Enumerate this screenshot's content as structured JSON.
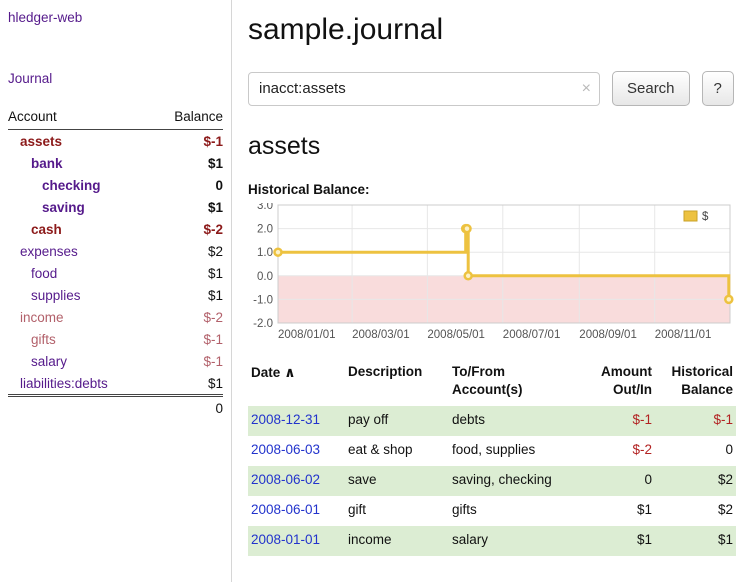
{
  "palette": {
    "link_purple": "#551a8b",
    "date_link_blue": "#2233cc",
    "negative_dark": "#8c1a1a",
    "negative_soft": "#b2606a",
    "negative_red": "#b22222",
    "text": "#111111",
    "row_shade_green": "#dcedd3",
    "chart_line_gold": "#edc240",
    "chart_negative_fill": "#f9dcdc",
    "chart_grid": "#e7e7e7",
    "chart_border": "#cccccc",
    "chart_tick_text": "#545454"
  },
  "sidebar": {
    "app_title": "hledger-web",
    "journal_link": "Journal",
    "accounts_header": {
      "account": "Account",
      "balance": "Balance"
    },
    "accounts": [
      {
        "name": "assets",
        "indent": 0,
        "bold": true,
        "name_color": "negative_dark",
        "balance": "$-1",
        "balance_color": "negative_dark"
      },
      {
        "name": "bank",
        "indent": 1,
        "bold": true,
        "name_color": "link_purple",
        "balance": "$1",
        "balance_color": "text"
      },
      {
        "name": "checking",
        "indent": 2,
        "bold": true,
        "name_color": "link_purple",
        "balance": "0",
        "balance_color": "text"
      },
      {
        "name": "saving",
        "indent": 2,
        "bold": true,
        "name_color": "link_purple",
        "balance": "$1",
        "balance_color": "text"
      },
      {
        "name": "cash",
        "indent": 1,
        "bold": true,
        "name_color": "negative_dark",
        "balance": "$-2",
        "balance_color": "negative_dark"
      },
      {
        "name": "expenses",
        "indent": 0,
        "bold": false,
        "name_color": "link_purple",
        "balance": "$2",
        "balance_color": "text"
      },
      {
        "name": "food",
        "indent": 1,
        "bold": false,
        "name_color": "link_purple",
        "balance": "$1",
        "balance_color": "text"
      },
      {
        "name": "supplies",
        "indent": 1,
        "bold": false,
        "name_color": "link_purple",
        "balance": "$1",
        "balance_color": "text"
      },
      {
        "name": "income",
        "indent": 0,
        "bold": false,
        "name_color": "negative_soft",
        "balance": "$-2",
        "balance_color": "negative_soft"
      },
      {
        "name": "gifts",
        "indent": 1,
        "bold": false,
        "name_color": "negative_soft",
        "balance": "$-1",
        "balance_color": "negative_soft"
      },
      {
        "name": "salary",
        "indent": 1,
        "bold": false,
        "name_color": "link_purple",
        "balance": "$-1",
        "balance_color": "negative_soft"
      },
      {
        "name": "liabilities:debts",
        "indent": 0,
        "bold": false,
        "name_color": "link_purple",
        "balance": "$1",
        "balance_color": "text"
      }
    ],
    "total": "0"
  },
  "main": {
    "title": "sample.journal",
    "search": {
      "value": "inacct:assets",
      "clear_icon": "×",
      "button_label": "Search",
      "help_label": "?"
    },
    "account_heading": "assets",
    "chart_label": "Historical Balance:",
    "register": {
      "columns": {
        "date": "Date",
        "sort_indicator": "∧",
        "description": "Description",
        "accounts": "To/From Account(s)",
        "amount": "Amount Out/In",
        "balance": "Historical Balance"
      },
      "rows": [
        {
          "date": "2008-12-31",
          "description": "pay off",
          "accounts": "debts",
          "amount": "$-1",
          "amount_negative": true,
          "balance": "$-1",
          "balance_negative": true,
          "shaded": true
        },
        {
          "date": "2008-06-03",
          "description": "eat & shop",
          "accounts": "food, supplies",
          "amount": "$-2",
          "amount_negative": true,
          "balance": "0",
          "balance_negative": false,
          "shaded": false
        },
        {
          "date": "2008-06-02",
          "description": "save",
          "accounts": "saving, checking",
          "amount": "0",
          "amount_negative": false,
          "balance": "$2",
          "balance_negative": false,
          "shaded": true
        },
        {
          "date": "2008-06-01",
          "description": "gift",
          "accounts": "gifts",
          "amount": "$1",
          "amount_negative": false,
          "balance": "$2",
          "balance_negative": false,
          "shaded": false
        },
        {
          "date": "2008-01-01",
          "description": "income",
          "accounts": "salary",
          "amount": "$1",
          "amount_negative": false,
          "balance": "$1",
          "balance_negative": false,
          "shaded": true
        }
      ]
    }
  },
  "chart_data": {
    "type": "line",
    "step": true,
    "title": "Historical Balance:",
    "legend": [
      {
        "label": "$",
        "color": "#edc240"
      }
    ],
    "ylim": [
      -2.0,
      3.0
    ],
    "yticks": [
      "3.0",
      "2.0",
      "1.0",
      "0.0",
      "-1.0",
      "-2.0"
    ],
    "xticks": [
      "2008/01/01",
      "2008/03/01",
      "2008/05/01",
      "2008/07/01",
      "2008/09/01",
      "2008/11/01"
    ],
    "x_range": [
      "2008-01-01",
      "2009-01-01"
    ],
    "series": [
      {
        "name": "$",
        "points": [
          [
            "2008-01-01",
            1
          ],
          [
            "2008-06-01",
            2
          ],
          [
            "2008-06-02",
            2
          ],
          [
            "2008-06-03",
            0
          ],
          [
            "2008-12-31",
            -1
          ]
        ]
      }
    ]
  }
}
